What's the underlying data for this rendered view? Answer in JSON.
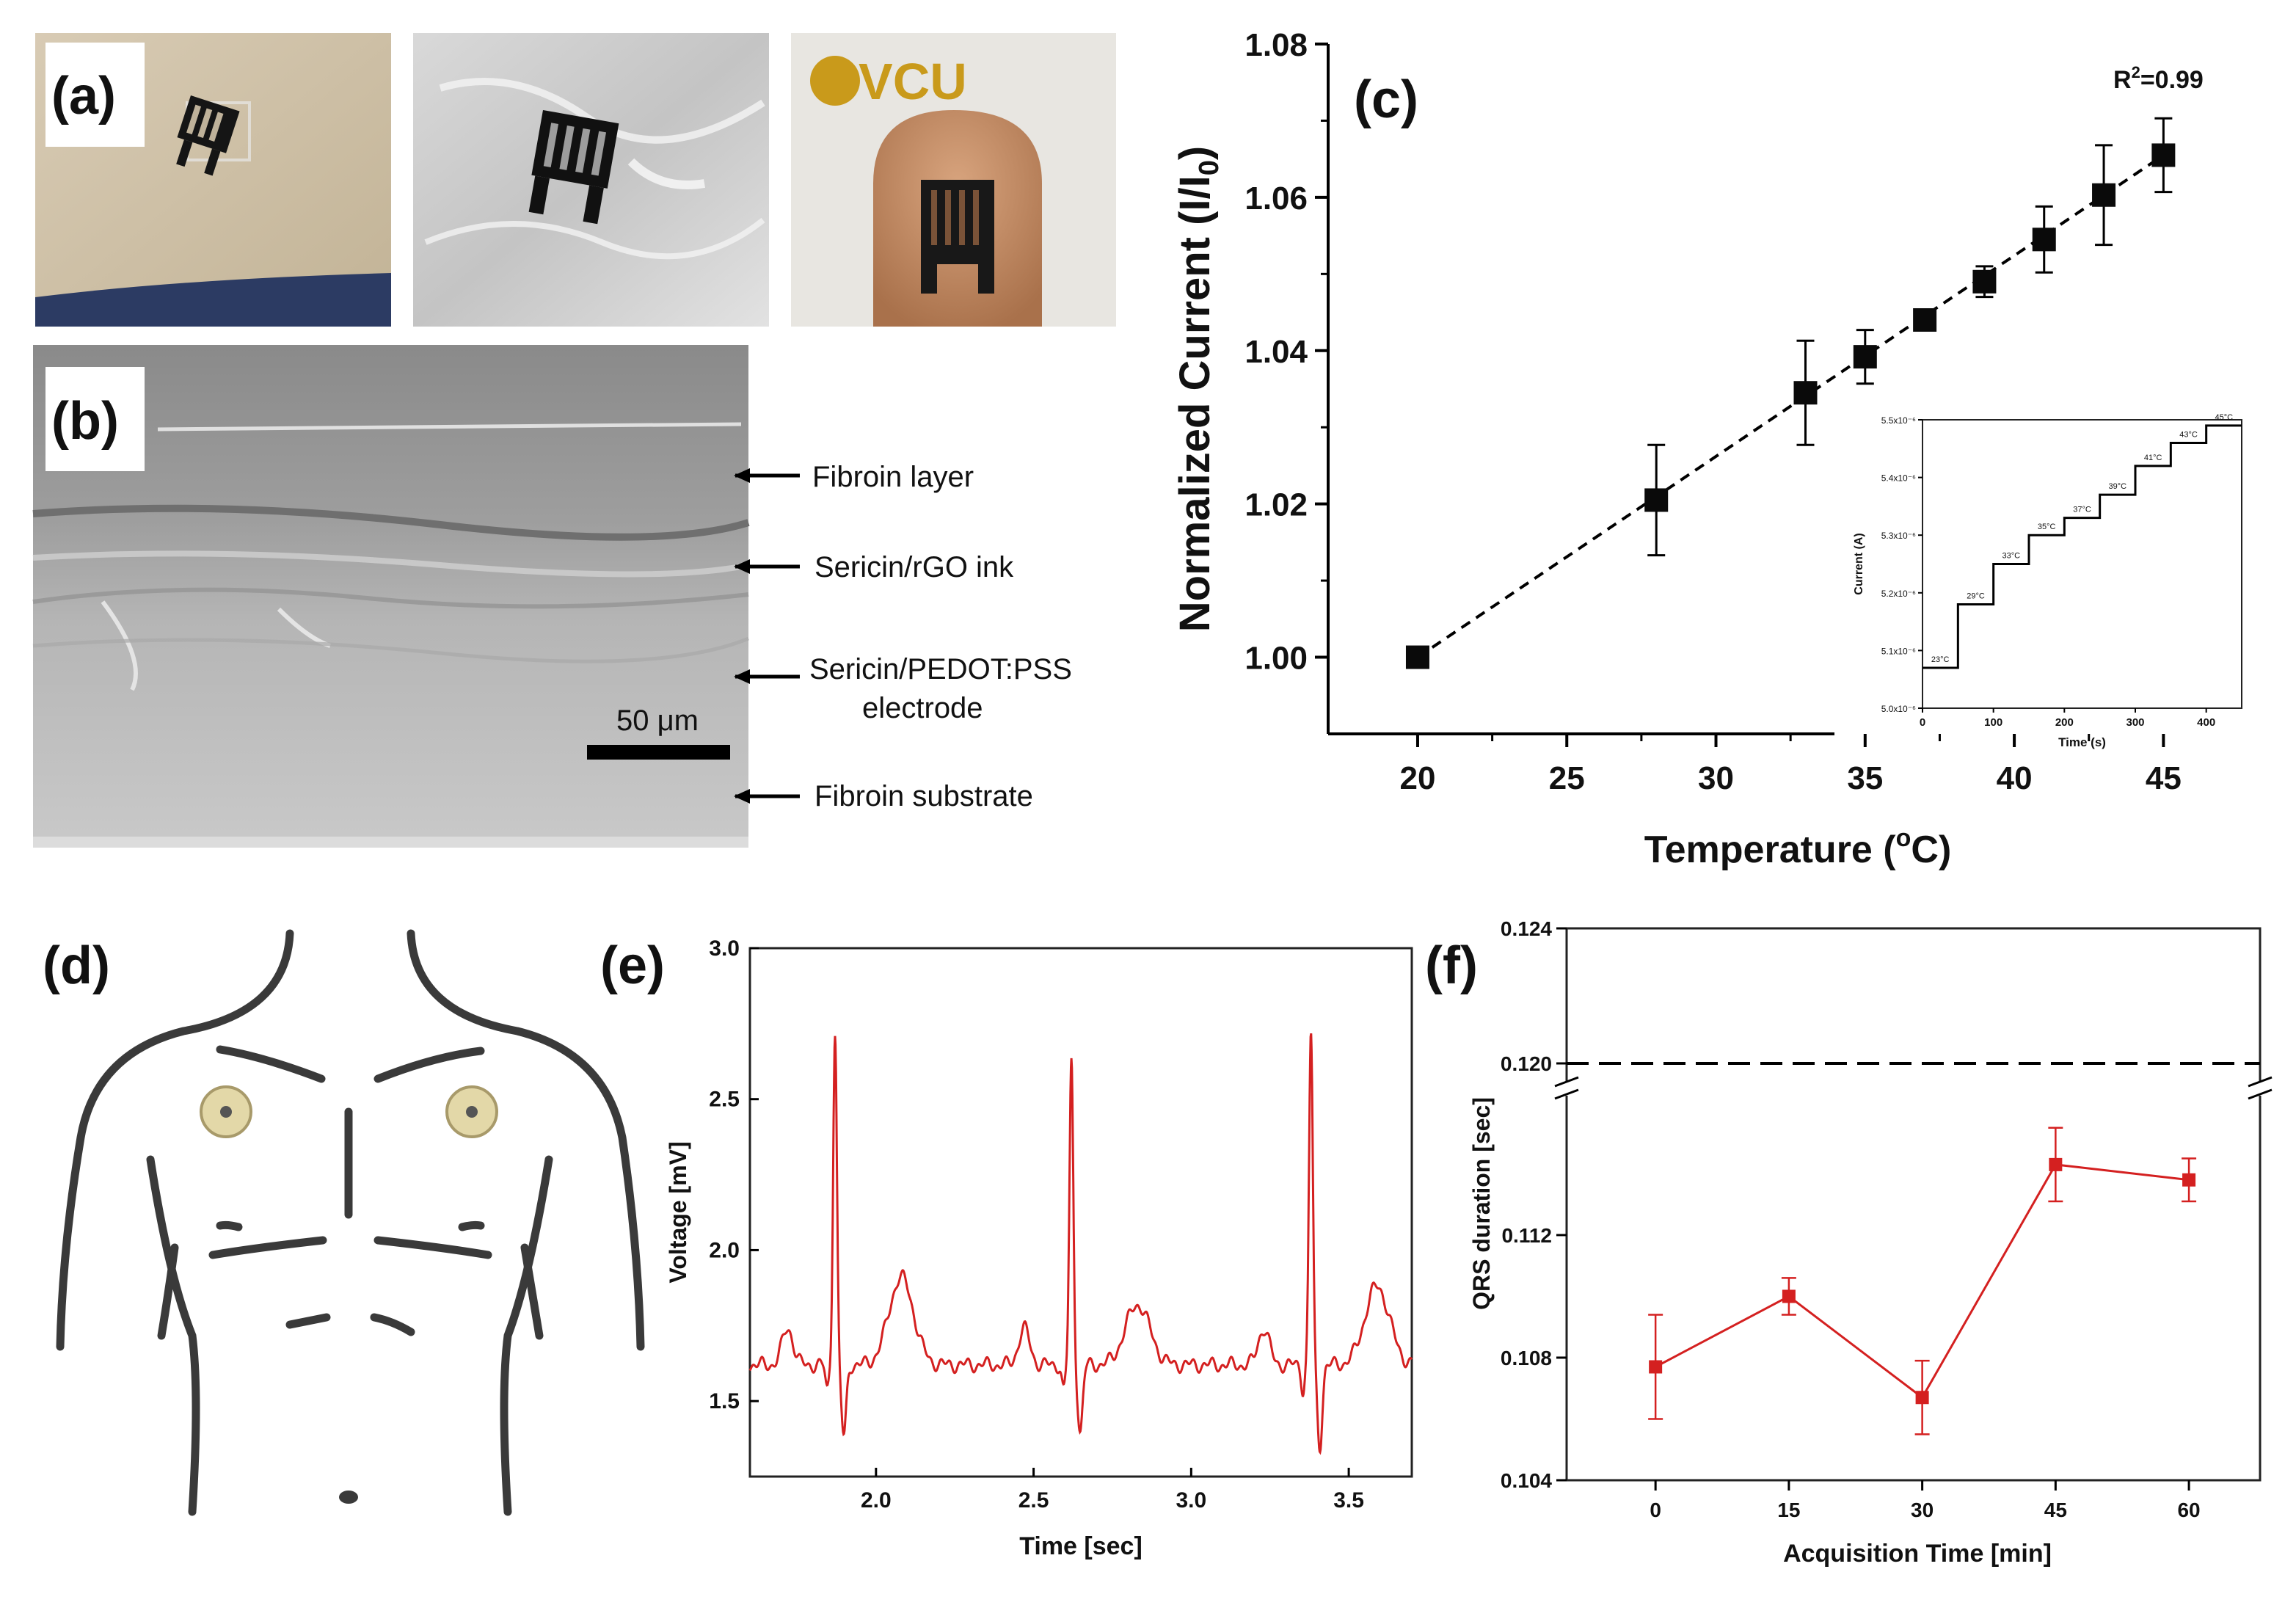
{
  "panel_labels": {
    "a": "(a)",
    "b": "(b)",
    "c": "(c)",
    "d": "(d)",
    "e": "(e)",
    "f": "(f)"
  },
  "photos": {
    "vcu_logo_text": "VCU",
    "layer_labels": [
      "Fibroin layer",
      "Sericin/rGO ink",
      "Sericin/PEDOT:PSS",
      "electrode",
      "Fibroin substrate"
    ],
    "scale_bar": "50 μm"
  },
  "colors": {
    "marker": "#0a0a0a",
    "ecg_line": "#d42020",
    "qrs_line": "#d42020",
    "skin": "#e9e3d7",
    "electrode": "#e3d8a8"
  },
  "chart_data": [
    {
      "id": "c",
      "type": "scatter",
      "ylabel_main": "Normalized Current (I/I",
      "ylabel_sub": "0",
      "ylabel_end": ")",
      "xlabel_main": "Temperature (",
      "xlabel_sup": "o",
      "xlabel_end": "C)",
      "annotation_main": "R",
      "annotation_sup": "2",
      "annotation_end": "=0.99",
      "xlim": [
        17,
        47.5
      ],
      "ylim": [
        0.99,
        1.08
      ],
      "xticks": [
        "20",
        "25",
        "30",
        "35",
        "40",
        "45"
      ],
      "yticks": [
        "1.00",
        "1.02",
        "1.04",
        "1.06",
        "1.08"
      ],
      "x": [
        20,
        28,
        33,
        35,
        37,
        39,
        41,
        43,
        45
      ],
      "y": [
        1.0,
        1.0205,
        1.0345,
        1.0392,
        1.044,
        1.049,
        1.0545,
        1.0603,
        1.0655
      ],
      "yerr": [
        0,
        0.0072,
        0.0068,
        0.0035,
        0.0005,
        0.002,
        0.0043,
        0.0065,
        0.0048
      ],
      "fit_line": "dashed",
      "inset": {
        "type": "line",
        "xlabel": "Time (s)",
        "ylabel": "Current (A)",
        "xlim": [
          0,
          450
        ],
        "ylim": [
          5.0,
          5.5
        ],
        "xticks": [
          "0",
          "100",
          "200",
          "300",
          "400"
        ],
        "yticks": [
          "5.0x10⁻⁶",
          "5.1x10⁻⁶",
          "5.2x10⁻⁶",
          "5.3x10⁻⁶",
          "5.4x10⁻⁶",
          "5.5x10⁻⁶"
        ],
        "steps": [
          {
            "t0": 0,
            "t1": 50,
            "y": 5.07,
            "label": "23°C"
          },
          {
            "t0": 50,
            "t1": 100,
            "y": 5.18,
            "label": "29°C"
          },
          {
            "t0": 100,
            "t1": 150,
            "y": 5.25,
            "label": "33°C"
          },
          {
            "t0": 150,
            "t1": 200,
            "y": 5.3,
            "label": "35°C"
          },
          {
            "t0": 200,
            "t1": 250,
            "y": 5.33,
            "label": "37°C"
          },
          {
            "t0": 250,
            "t1": 300,
            "y": 5.37,
            "label": "39°C"
          },
          {
            "t0": 300,
            "t1": 350,
            "y": 5.42,
            "label": "41°C"
          },
          {
            "t0": 350,
            "t1": 400,
            "y": 5.46,
            "label": "43°C"
          },
          {
            "t0": 400,
            "t1": 450,
            "y": 5.49,
            "label": "45°C"
          }
        ]
      }
    },
    {
      "id": "e",
      "type": "line",
      "xlabel": "Time [sec]",
      "ylabel": "Voltage [mV]",
      "xlim": [
        1.6,
        3.7
      ],
      "ylim": [
        1.25,
        3.0
      ],
      "xticks": [
        "2.0",
        "2.5",
        "3.0",
        "3.5"
      ],
      "yticks": [
        "1.5",
        "2.0",
        "2.5",
        "3.0"
      ],
      "baseline": 1.62,
      "beats": [
        {
          "r_time": 1.87,
          "r_peak": 2.72,
          "s_min": 1.38,
          "t_peak": 1.91
        },
        {
          "r_time": 2.62,
          "r_peak": 2.62,
          "s_min": 1.4,
          "t_peak": 1.82
        },
        {
          "r_time": 3.38,
          "r_peak": 2.72,
          "s_min": 1.35,
          "t_peak": 1.88
        }
      ]
    },
    {
      "id": "f",
      "type": "line",
      "xlabel": "Acquisition Time [min]",
      "ylabel": "QRS duration [sec]",
      "xlim": [
        -10,
        68
      ],
      "ylim_lower": [
        0.104,
        0.1165
      ],
      "ylim_upper": [
        0.1195,
        0.124
      ],
      "xticks": [
        "0",
        "15",
        "30",
        "45",
        "60"
      ],
      "yticks": [
        "0.104",
        "0.108",
        "0.112",
        "0.120",
        "0.124"
      ],
      "x": [
        0,
        15,
        30,
        45,
        60
      ],
      "y": [
        0.1077,
        0.11,
        0.1067,
        0.1143,
        0.1138
      ],
      "yerr": [
        0.0017,
        0.0006,
        0.0012,
        0.0012,
        0.0007
      ],
      "reference_line": 0.12
    }
  ]
}
